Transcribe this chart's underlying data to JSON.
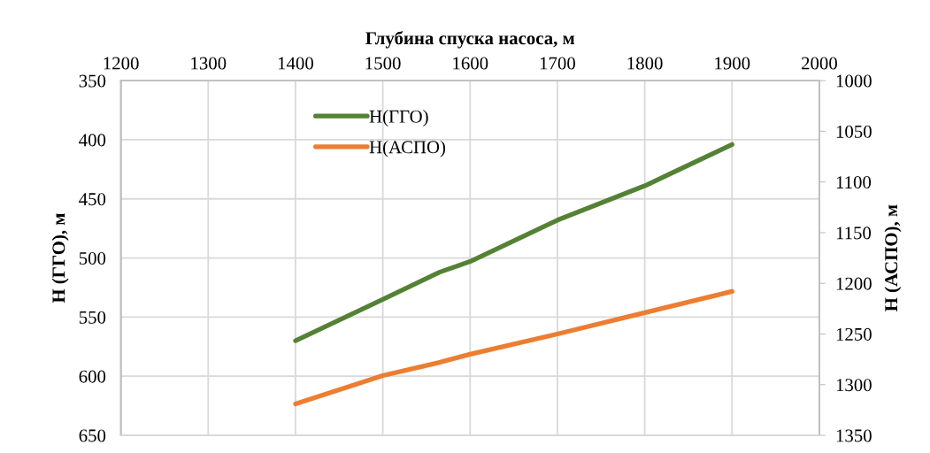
{
  "chart_data": {
    "type": "line",
    "xlabel": "Глубина спуска насоса, м",
    "ylabel": "H (ГГО), м",
    "y2label": "H (АСПО), м",
    "x": [
      1400,
      1500,
      1565,
      1600,
      1700,
      1800,
      1900
    ],
    "series": [
      {
        "name": "H(ГГО)",
        "color": "#548235",
        "values": [
          570,
          535,
          512,
          503,
          468,
          439,
          404
        ]
      },
      {
        "name": "H(АСПО)",
        "color": "#ed7d31",
        "axis": "y2",
        "values": [
          1319,
          1291,
          1278,
          1270,
          1250,
          1229,
          1208
        ]
      }
    ],
    "xlim": [
      1200,
      2000
    ],
    "xticks": [
      1200,
      1300,
      1400,
      1500,
      1600,
      1700,
      1800,
      1900,
      2000
    ],
    "ylim": [
      650,
      350
    ],
    "yticks": [
      350,
      400,
      450,
      500,
      550,
      600,
      650
    ],
    "y2lim": [
      1350,
      1000
    ],
    "y2ticks": [
      1000,
      1050,
      1100,
      1150,
      1200,
      1250,
      1300,
      1350
    ],
    "grid": true,
    "legend": "top left",
    "marker": "none",
    "line_style": "solid"
  }
}
